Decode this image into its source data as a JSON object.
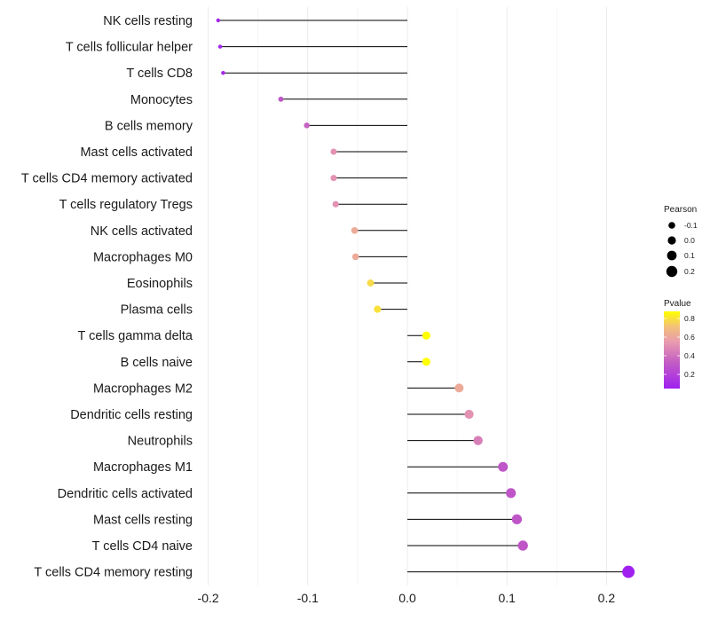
{
  "chart_data": {
    "type": "lollipop",
    "title": "",
    "xlabel": "",
    "ylabel": "",
    "xlim": [
      -0.2,
      0.22
    ],
    "x_ticks": [
      -0.2,
      -0.1,
      0.0,
      0.1,
      0.2
    ],
    "x_tick_labels": [
      "-0.2",
      "-0.1",
      "0.0",
      "0.1",
      "0.2"
    ],
    "grid": "vertical",
    "categories": [
      "NK cells resting",
      "T cells follicular helper",
      "T cells CD8",
      "Monocytes",
      "B cells memory",
      "Mast cells activated",
      "T cells CD4 memory activated",
      "T cells regulatory  Tregs",
      "NK cells activated",
      "Macrophages M0",
      "Eosinophils",
      "Plasma cells",
      "T cells gamma delta",
      "B cells naive",
      "Macrophages M2",
      "Dendritic cells resting",
      "Neutrophils",
      "Macrophages M1",
      "Dendritic cells activated",
      "Mast cells resting",
      "T cells CD4 naive",
      "T cells CD4 memory resting"
    ],
    "pearson": [
      -0.19,
      -0.188,
      -0.185,
      -0.127,
      -0.101,
      -0.074,
      -0.074,
      -0.072,
      -0.053,
      -0.052,
      -0.037,
      -0.03,
      0.019,
      0.019,
      0.052,
      0.062,
      0.071,
      0.096,
      0.104,
      0.11,
      0.116,
      0.222
    ],
    "pvalue": [
      0.07,
      0.07,
      0.08,
      0.3,
      0.35,
      0.52,
      0.52,
      0.52,
      0.62,
      0.62,
      0.78,
      0.8,
      0.88,
      0.88,
      0.62,
      0.52,
      0.45,
      0.3,
      0.3,
      0.3,
      0.3,
      0.05
    ],
    "legend": {
      "size_title": "Pearson",
      "size_labels": [
        "-0.1",
        "0.0",
        "0.1",
        "0.2"
      ],
      "size_values": [
        -0.1,
        0.0,
        0.1,
        0.2
      ],
      "color_title": "Pvalue",
      "color_labels": [
        "0.8",
        "0.6",
        "0.4",
        "0.2"
      ],
      "color_values": [
        0.8,
        0.6,
        0.4,
        0.2
      ],
      "color_range": [
        0.05,
        0.88
      ],
      "placement": "right"
    },
    "colors": {
      "low": "#a020f0",
      "mid": "#e89ab0",
      "high": "#ffff00",
      "stem": "#000000",
      "grid": "#ebebeb"
    }
  }
}
